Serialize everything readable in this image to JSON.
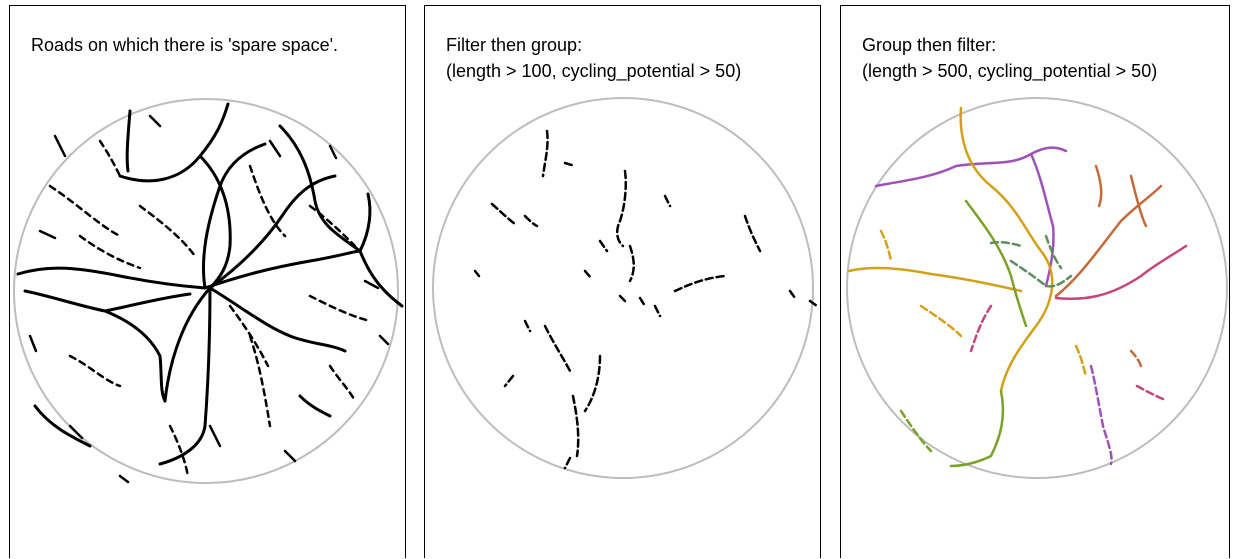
{
  "panels": [
    {
      "title_line1": "Roads on which there is 'spare space'.",
      "title_line2": ""
    },
    {
      "title_line1": "Filter then group:",
      "title_line2": "(length > 100, cycling_potential > 50)"
    },
    {
      "title_line1": "Group then filter:",
      "title_line2": "(length > 500, cycling_potential > 50)"
    }
  ],
  "colors": {
    "boundary": "#bdbdbd",
    "roads": "#000000",
    "groups": [
      "#9e52b8",
      "#c46a3a",
      "#d4a017",
      "#7aa128",
      "#5c8f5c",
      "#c8457a"
    ]
  }
}
